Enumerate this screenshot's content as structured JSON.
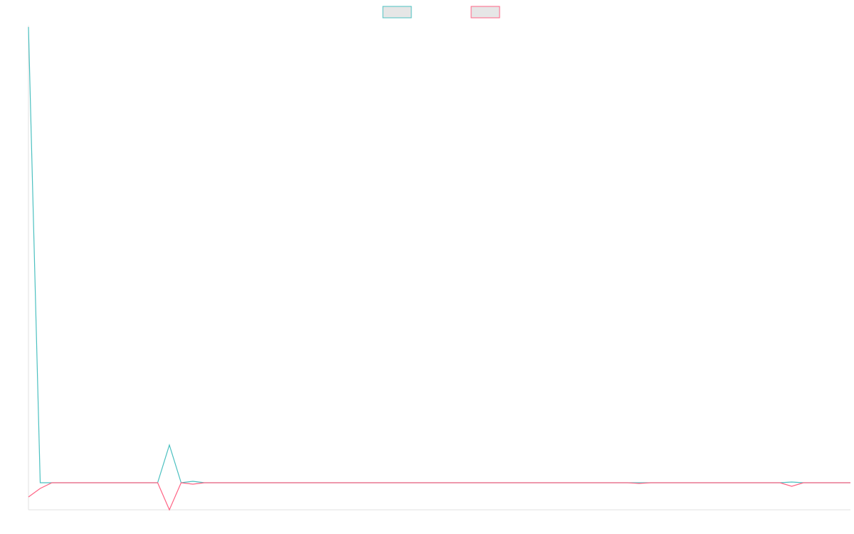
{
  "chart_data": {
    "type": "line",
    "categories": [
      null,
      null,
      null,
      null,
      null,
      null,
      null,
      null,
      null,
      null,
      null,
      null,
      null,
      null,
      null,
      null,
      null,
      null,
      null,
      null,
      null,
      null,
      null,
      null,
      null,
      null,
      null,
      null,
      null,
      null,
      null,
      null,
      null,
      null,
      null,
      null,
      null,
      null,
      null,
      null,
      null,
      null,
      null,
      null,
      null,
      null,
      null,
      null,
      null,
      null,
      null,
      null,
      null,
      null,
      null,
      null,
      null,
      null,
      null,
      null,
      null,
      null,
      null,
      null,
      null,
      null,
      null,
      null,
      null,
      null,
      null
    ],
    "series": [
      {
        "color": "#4bc0c0",
        "values": [
          32,
          0,
          0,
          0,
          0,
          0,
          0,
          0,
          0,
          0,
          0,
          0,
          2.65,
          0,
          0.1,
          0,
          0,
          0,
          0,
          0,
          0,
          0,
          0,
          0,
          0,
          0,
          0,
          0,
          0,
          0,
          0,
          0,
          0,
          0,
          0,
          0,
          0,
          0,
          0,
          0,
          0,
          0,
          0,
          0,
          0,
          0,
          0,
          0,
          0,
          0,
          0,
          0,
          0,
          0,
          0,
          0,
          0,
          0,
          0,
          0,
          0,
          0,
          0,
          0,
          0,
          0.05,
          0,
          0,
          0,
          0,
          0
        ]
      },
      {
        "color": "#ff6384",
        "values": [
          -1,
          -0.4,
          0,
          0,
          0,
          0,
          0,
          0,
          0,
          0,
          0,
          0,
          -1.9,
          0,
          -0.1,
          0,
          0,
          0,
          0,
          0,
          0,
          0,
          0,
          0,
          0,
          0,
          0,
          0,
          0,
          0,
          0,
          0,
          0,
          0,
          0,
          0,
          0,
          0,
          0,
          0,
          0,
          0,
          0,
          0,
          0,
          0,
          0,
          0,
          0,
          0,
          0,
          0,
          -0.05,
          0,
          0,
          0,
          0,
          0,
          0,
          0,
          0,
          0,
          0,
          0,
          0,
          -0.25,
          0,
          0,
          0,
          0,
          0
        ]
      }
    ],
    "ylim": [
      -1.9,
      32.1
    ],
    "legend": "top"
  }
}
